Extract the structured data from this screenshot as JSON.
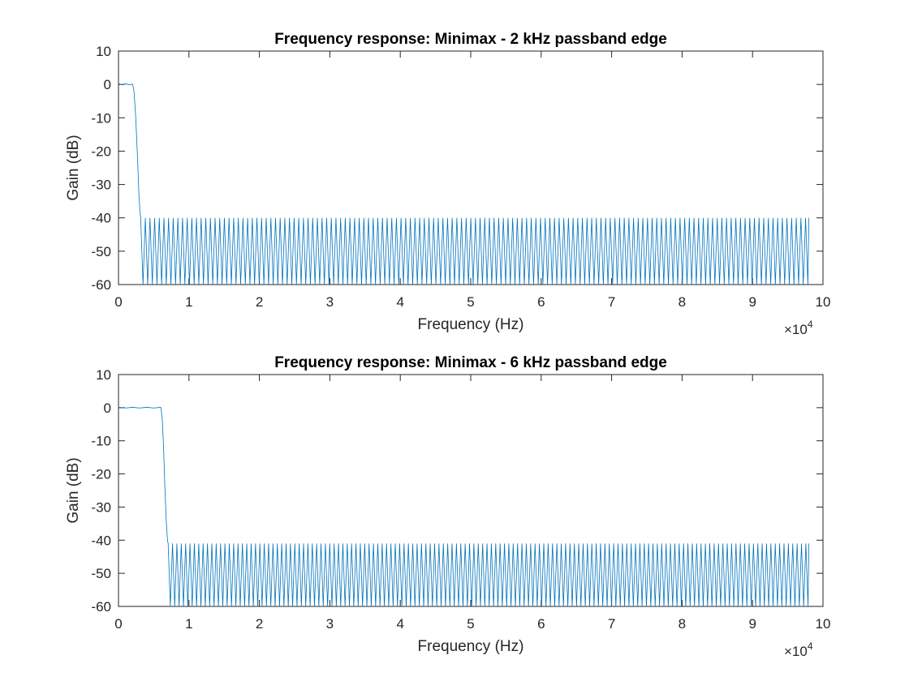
{
  "figure": {
    "colors": {
      "series": "#0072bd",
      "axes": "#262626",
      "background": "#ffffff"
    }
  },
  "chart_data": [
    {
      "type": "line",
      "title": "Frequency response: Minimax - 2 kHz passband edge",
      "xlabel": "Frequency (Hz)",
      "ylabel": "Gain (dB)",
      "x_exponent_base": "×10",
      "x_exponent_power": "4",
      "xlim": [
        0,
        100000
      ],
      "ylim": [
        -60,
        10
      ],
      "xticks": [
        0,
        10000,
        20000,
        30000,
        40000,
        50000,
        60000,
        70000,
        80000,
        90000,
        100000
      ],
      "xtick_labels": [
        "0",
        "1",
        "2",
        "3",
        "4",
        "5",
        "6",
        "7",
        "8",
        "9",
        "10"
      ],
      "yticks": [
        -60,
        -50,
        -40,
        -30,
        -20,
        -10,
        0,
        10
      ],
      "ytick_labels": [
        "-60",
        "-50",
        "-40",
        "-30",
        "-20",
        "-10",
        "0",
        "10"
      ],
      "grid": false,
      "series": [
        {
          "passband_x": [
            0,
            500,
            1000,
            1500,
            2000
          ],
          "passband_y": [
            0.2,
            -0.1,
            0.2,
            -0.1,
            0.1
          ],
          "transition_x": [
            2000,
            2200,
            2450,
            2700,
            2900,
            3050,
            3150
          ],
          "transition_y": [
            0.1,
            -2,
            -10,
            -22,
            -33,
            -38,
            -40
          ],
          "stopband_start_hz": 3150,
          "stopband_end_hz": 98000,
          "stopband_peak_db": -40,
          "stopband_floor_db": -60,
          "stopband_ripple_period_hz": 660
        }
      ]
    },
    {
      "type": "line",
      "title": "Frequency response: Minimax -  6 kHz passband edge",
      "xlabel": "Frequency (Hz)",
      "ylabel": "Gain (dB)",
      "x_exponent_base": "×10",
      "x_exponent_power": "4",
      "xlim": [
        0,
        100000
      ],
      "ylim": [
        -60,
        10
      ],
      "xticks": [
        0,
        10000,
        20000,
        30000,
        40000,
        50000,
        60000,
        70000,
        80000,
        90000,
        100000
      ],
      "xtick_labels": [
        "0",
        "1",
        "2",
        "3",
        "4",
        "5",
        "6",
        "7",
        "8",
        "9",
        "10"
      ],
      "yticks": [
        -60,
        -50,
        -40,
        -30,
        -20,
        -10,
        0,
        10
      ],
      "ytick_labels": [
        "-60",
        "-50",
        "-40",
        "-30",
        "-20",
        "-10",
        "0",
        "10"
      ],
      "grid": false,
      "series": [
        {
          "passband_x": [
            0,
            1000,
            2000,
            3000,
            4000,
            5000,
            6000
          ],
          "passband_y": [
            0.1,
            -0.1,
            0.1,
            -0.1,
            0.1,
            -0.1,
            0.1
          ],
          "transition_x": [
            6000,
            6200,
            6400,
            6600,
            6800,
            6950,
            7050
          ],
          "transition_y": [
            0.1,
            -3,
            -12,
            -25,
            -35,
            -40,
            -41
          ],
          "stopband_start_hz": 7050,
          "stopband_end_hz": 98000,
          "stopband_peak_db": -41,
          "stopband_floor_db": -60,
          "stopband_ripple_period_hz": 620
        }
      ]
    }
  ]
}
